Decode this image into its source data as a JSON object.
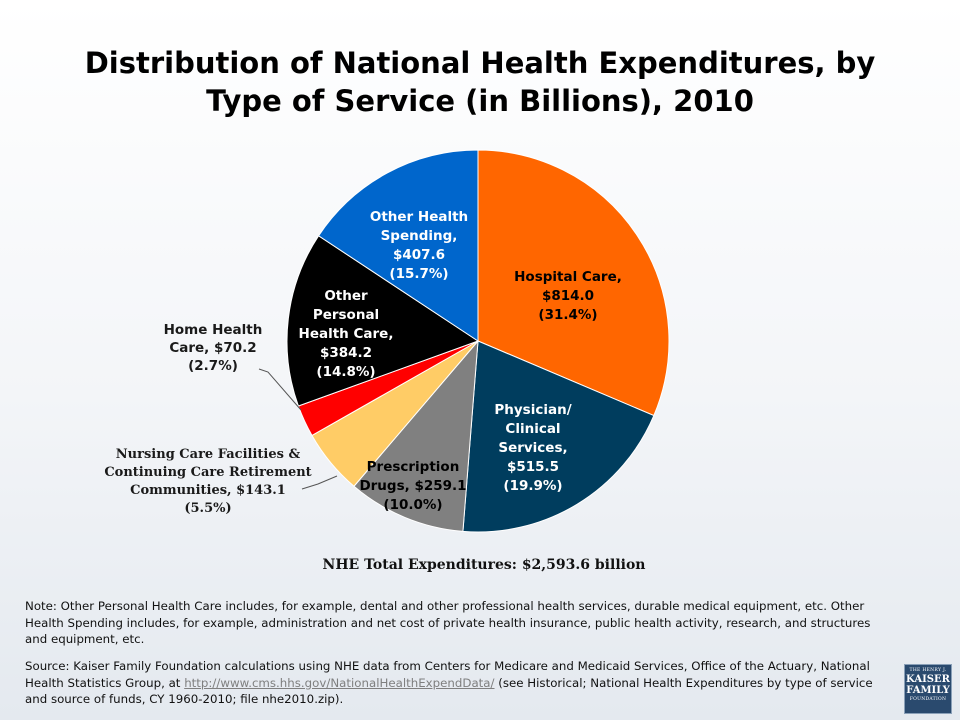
{
  "title": "Distribution of National Health Expenditures, by Type of Service (in Billions), 2010",
  "total_label": "NHE Total Expenditures: $2,593.6 billion",
  "note": "Note: Other Personal Health Care includes, for example, dental and other professional health services, durable medical equipment, etc. Other Health Spending includes, for example, administration and net cost of private health insurance, public health activity, research, and structures and equipment, etc.",
  "source": {
    "prefix": "Source: Kaiser Family Foundation calculations using NHE data from Centers for Medicare and Medicaid Services, Office of the Actuary, National Health Statistics Group, at ",
    "link": "http://www.cms.hhs.gov/NationalHealthExpendData/",
    "suffix": " (see Historical; National Health Expenditures by type of service and source of funds, CY 1960-2010; file nhe2010.zip)."
  },
  "logo": {
    "line1": "THE HENRY J.",
    "line2": "KAISER",
    "line3": "FAMILY",
    "line4": "FOUNDATION"
  },
  "chart_data": {
    "type": "pie",
    "title": "Distribution of National Health Expenditures, by Type of Service (in Billions), 2010",
    "start_angle": "12 o'clock",
    "direction": "clockwise",
    "slices": [
      {
        "name": "Hospital Care",
        "value": 814.0,
        "percent": 31.4,
        "color": "#ff6600",
        "label_lines": [
          "Hospital Care,",
          "$814.0",
          "(31.4%)"
        ],
        "label_color": "#000000"
      },
      {
        "name": "Physician/Clinical Services",
        "value": 515.5,
        "percent": 19.9,
        "color": "#003d5e",
        "label_lines": [
          "Physician/",
          "Clinical",
          "Services,",
          "$515.5",
          "(19.9%)"
        ],
        "label_color": "#ffffff"
      },
      {
        "name": "Prescription Drugs",
        "value": 259.1,
        "percent": 10.0,
        "color": "#808080",
        "label_lines": [
          "Prescription",
          "Drugs, $259.1",
          "(10.0%)"
        ],
        "label_color": "#000000"
      },
      {
        "name": "Nursing Care Facilities & Continuing Care Retirement Communities",
        "value": 143.1,
        "percent": 5.5,
        "color": "#ffcc66",
        "label_lines": [
          "Nursing Care Facilities &",
          "Continuing Care Retirement",
          "Communities, $143.1",
          "(5.5%)"
        ],
        "label_color": "#1a1a1a",
        "external": true
      },
      {
        "name": "Home Health Care",
        "value": 70.2,
        "percent": 2.7,
        "color": "#ff0000",
        "label_lines": [
          "Home Health",
          "Care, $70.2",
          "(2.7%)"
        ],
        "label_color": "#1a1a1a",
        "external": true
      },
      {
        "name": "Other Personal Health Care",
        "value": 384.2,
        "percent": 14.8,
        "color": "#000000",
        "label_lines": [
          "Other",
          "Personal",
          "Health Care,",
          "$384.2",
          "(14.8%)"
        ],
        "label_color": "#ffffff"
      },
      {
        "name": "Other Health Spending",
        "value": 407.6,
        "percent": 15.7,
        "color": "#0066cc",
        "label_lines": [
          "Other Health",
          "Spending,",
          "$407.6",
          "(15.7%)"
        ],
        "label_color": "#ffffff"
      }
    ]
  }
}
